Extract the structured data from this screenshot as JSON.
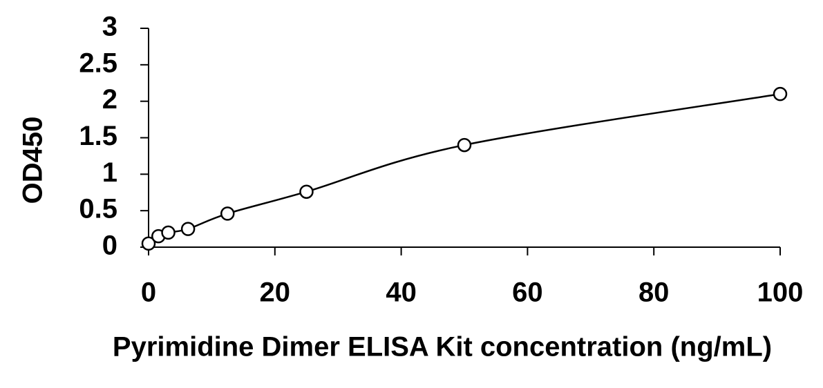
{
  "chart_data": {
    "type": "scatter",
    "x_label": "Pyrimidine Dimer ELISA Kit concentration (ng/mL)",
    "y_label": "OD450",
    "x": [
      0,
      1.5625,
      3.125,
      6.25,
      12.5,
      25,
      50,
      100
    ],
    "values": [
      0.05,
      0.15,
      0.2,
      0.25,
      0.46,
      0.76,
      1.4,
      2.1
    ],
    "color": "#000000",
    "xlim": [
      0,
      100
    ],
    "xticks": [
      0,
      20,
      40,
      60,
      80,
      100
    ],
    "ylim": [
      0,
      3
    ],
    "yticks": [
      0,
      0.5,
      1,
      1.5,
      2,
      2.5,
      3
    ],
    "grid": false
  }
}
